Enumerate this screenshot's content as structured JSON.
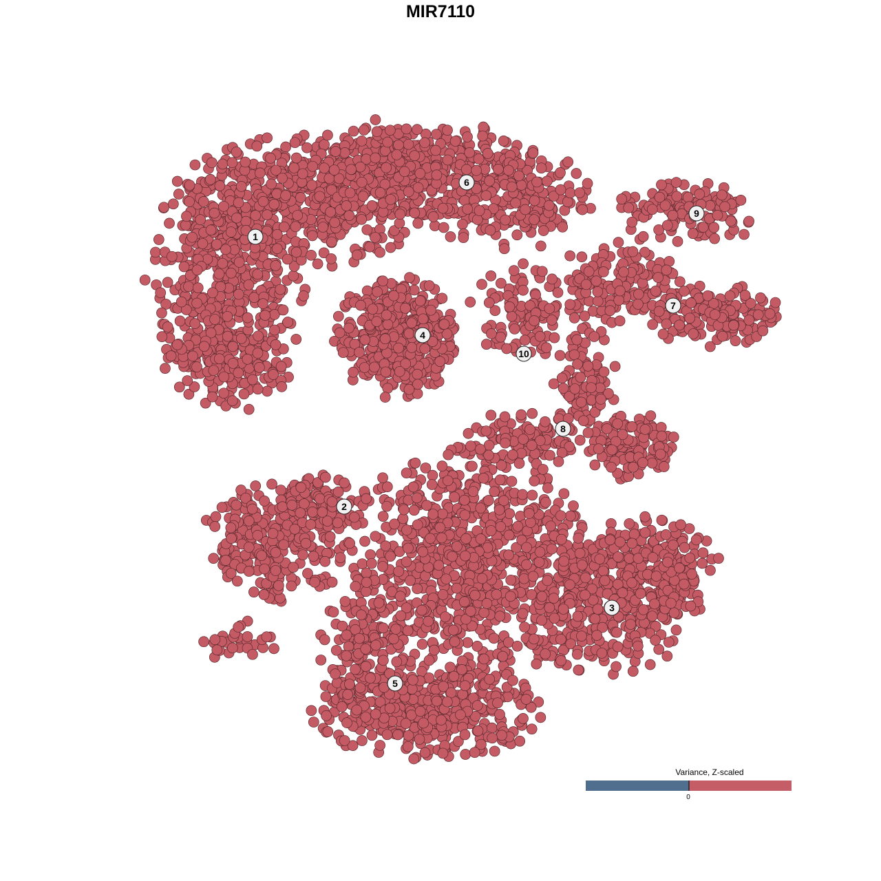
{
  "chart_data": {
    "type": "scatter",
    "title": "MIR7110",
    "xlabel": "",
    "ylabel": "",
    "xlim": [
      -45,
      50
    ],
    "ylim": [
      -46,
      47
    ],
    "grid": false,
    "axes_visible": false,
    "point_color": "#c45a64",
    "point_stroke": "#5a2a2e",
    "note_points": "points drawn as blobs of cells per region (center, spread, count) in embedding units",
    "point_blobs": [
      {
        "cx": -31,
        "cy": 24,
        "sx": 6,
        "sy": 9,
        "n": 500
      },
      {
        "cx": -19,
        "cy": 35,
        "sx": 9,
        "sy": 5,
        "n": 400
      },
      {
        "cx": -4,
        "cy": 39,
        "sx": 9,
        "sy": 4,
        "n": 400
      },
      {
        "cx": 10,
        "cy": 35,
        "sx": 6,
        "sy": 4,
        "n": 200
      },
      {
        "cx": -31,
        "cy": 12,
        "sx": 5,
        "sy": 4,
        "n": 150
      },
      {
        "cx": -6.5,
        "cy": 15,
        "sx": 4.5,
        "sy": 4.5,
        "n": 450
      },
      {
        "cx": 26,
        "cy": 23,
        "sx": 5,
        "sy": 3,
        "n": 150
      },
      {
        "cx": 40,
        "cy": 18,
        "sx": 5,
        "sy": 2.5,
        "n": 150
      },
      {
        "cx": 36,
        "cy": 33,
        "sx": 5.5,
        "sy": 2.5,
        "n": 130
      },
      {
        "cx": 12,
        "cy": 19,
        "sx": 4,
        "sy": 3.5,
        "n": 100
      },
      {
        "cx": 21,
        "cy": 8,
        "sx": 2.5,
        "sy": 4.5,
        "n": 100
      },
      {
        "cx": 28,
        "cy": -1,
        "sx": 3.5,
        "sy": 2.5,
        "n": 130
      },
      {
        "cx": 12,
        "cy": 0,
        "sx": 5,
        "sy": 2.5,
        "n": 100
      },
      {
        "cx": -24,
        "cy": -15,
        "sx": 5.5,
        "sy": 4.5,
        "n": 250
      },
      {
        "cx": -17,
        "cy": -9,
        "sx": 3.5,
        "sy": 2,
        "n": 80
      },
      {
        "cx": -29.5,
        "cy": -29,
        "sx": 3,
        "sy": 1.5,
        "n": 30
      },
      {
        "cx": 4,
        "cy": -18,
        "sx": 9,
        "sy": 9,
        "n": 800
      },
      {
        "cx": 24,
        "cy": -23,
        "sx": 7,
        "sy": 5.5,
        "n": 400
      },
      {
        "cx": 32,
        "cy": -18,
        "sx": 4.5,
        "sy": 4,
        "n": 150
      },
      {
        "cx": -2,
        "cy": -39,
        "sx": 8.5,
        "sy": 4,
        "n": 400
      },
      {
        "cx": -11,
        "cy": -31,
        "sx": 3.5,
        "sy": 5.5,
        "n": 150
      }
    ],
    "cluster_labels": [
      {
        "label": "1",
        "x": -26.9,
        "y": 29.6
      },
      {
        "label": "2",
        "x": -14,
        "y": -9.6
      },
      {
        "label": "3",
        "x": 24.9,
        "y": -24.3
      },
      {
        "label": "4",
        "x": -2.6,
        "y": 15.3
      },
      {
        "label": "5",
        "x": -6.6,
        "y": -35.3
      },
      {
        "label": "6",
        "x": 3.8,
        "y": 37.5
      },
      {
        "label": "7",
        "x": 33.8,
        "y": 19.6
      },
      {
        "label": "8",
        "x": 17.8,
        "y": 1.7
      },
      {
        "label": "9",
        "x": 37.2,
        "y": 33
      },
      {
        "label": "10",
        "x": 12.1,
        "y": 12.6
      }
    ],
    "legend": {
      "title": "Variance, Z-scaled",
      "tick_label": "0",
      "low_color": "#506e8e",
      "high_color": "#c55d66",
      "placement": "bottom-right"
    }
  }
}
